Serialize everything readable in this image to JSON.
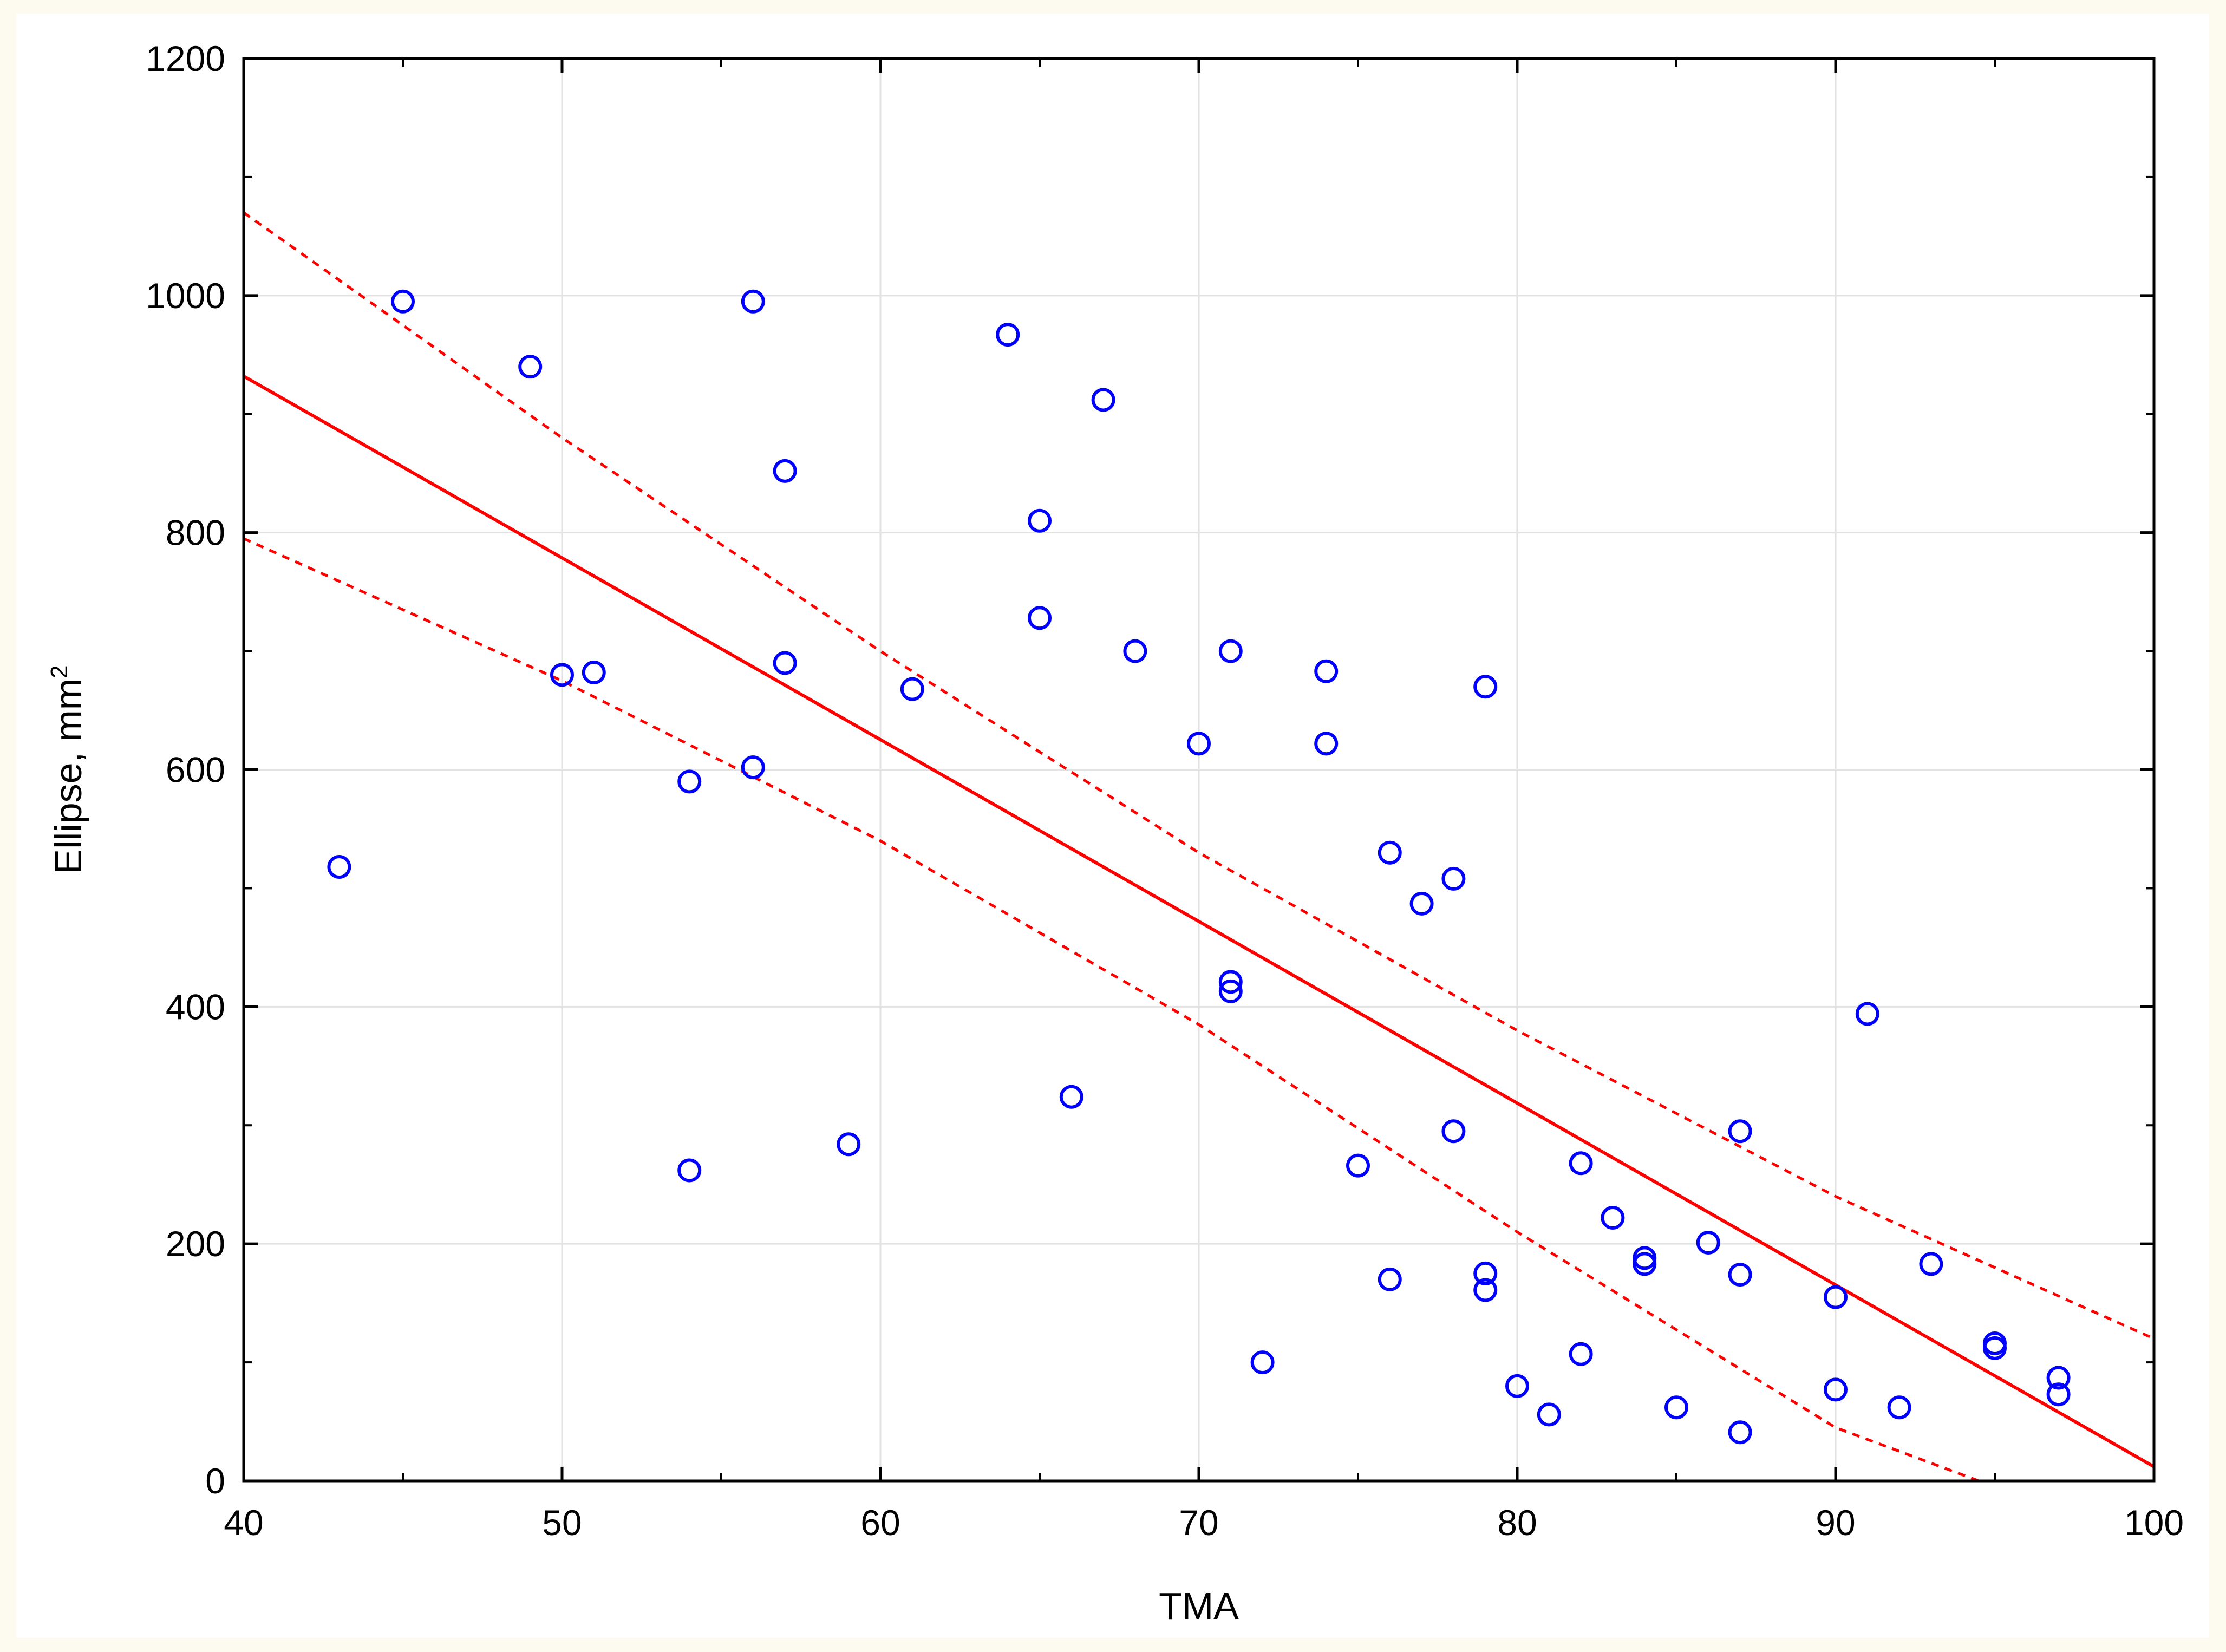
{
  "chart_data": {
    "type": "scatter",
    "title": "",
    "xlabel": "TMA",
    "ylabel": "Ellipse, mm",
    "ylabel_superscript": "2",
    "xlim": [
      40,
      100
    ],
    "ylim": [
      0,
      1200
    ],
    "x_ticks": [
      "40",
      "50",
      "60",
      "70",
      "80",
      "90",
      "100"
    ],
    "y_ticks": [
      "0",
      "200",
      "400",
      "600",
      "800",
      "1000",
      "1200"
    ],
    "grid": true,
    "legend": "none",
    "point_color": "#0000ff",
    "line_color": "#ff0000",
    "regression": {
      "x": [
        40,
        100
      ],
      "y": [
        932,
        12
      ]
    },
    "confidence_upper": {
      "x": [
        40,
        50,
        60,
        70,
        80,
        90,
        100
      ],
      "y": [
        1070,
        880,
        700,
        530,
        380,
        240,
        120
      ]
    },
    "confidence_lower": {
      "x": [
        40,
        50,
        60,
        70,
        80,
        90,
        94.5
      ],
      "y": [
        795,
        675,
        540,
        385,
        210,
        45,
        0
      ]
    },
    "points": [
      {
        "x": 43,
        "y": 518
      },
      {
        "x": 45,
        "y": 995
      },
      {
        "x": 49,
        "y": 940
      },
      {
        "x": 50,
        "y": 680
      },
      {
        "x": 51,
        "y": 682
      },
      {
        "x": 54,
        "y": 590
      },
      {
        "x": 54,
        "y": 262
      },
      {
        "x": 56,
        "y": 995
      },
      {
        "x": 56,
        "y": 602
      },
      {
        "x": 57,
        "y": 852
      },
      {
        "x": 57,
        "y": 690
      },
      {
        "x": 59,
        "y": 284
      },
      {
        "x": 61,
        "y": 668
      },
      {
        "x": 64,
        "y": 967
      },
      {
        "x": 65,
        "y": 810
      },
      {
        "x": 65,
        "y": 728
      },
      {
        "x": 66,
        "y": 324
      },
      {
        "x": 67,
        "y": 912
      },
      {
        "x": 68,
        "y": 700
      },
      {
        "x": 70,
        "y": 622
      },
      {
        "x": 71,
        "y": 700
      },
      {
        "x": 71,
        "y": 421
      },
      {
        "x": 71,
        "y": 413
      },
      {
        "x": 72,
        "y": 100
      },
      {
        "x": 74,
        "y": 683
      },
      {
        "x": 74,
        "y": 622
      },
      {
        "x": 75,
        "y": 266
      },
      {
        "x": 76,
        "y": 530
      },
      {
        "x": 76,
        "y": 170
      },
      {
        "x": 77,
        "y": 487
      },
      {
        "x": 78,
        "y": 508
      },
      {
        "x": 78,
        "y": 295
      },
      {
        "x": 79,
        "y": 670
      },
      {
        "x": 79,
        "y": 175
      },
      {
        "x": 79,
        "y": 161
      },
      {
        "x": 80,
        "y": 80
      },
      {
        "x": 81,
        "y": 56
      },
      {
        "x": 82,
        "y": 268
      },
      {
        "x": 82,
        "y": 107
      },
      {
        "x": 83,
        "y": 222
      },
      {
        "x": 84,
        "y": 188
      },
      {
        "x": 84,
        "y": 183
      },
      {
        "x": 85,
        "y": 62
      },
      {
        "x": 86,
        "y": 201
      },
      {
        "x": 87,
        "y": 295
      },
      {
        "x": 87,
        "y": 174
      },
      {
        "x": 87,
        "y": 41
      },
      {
        "x": 90,
        "y": 155
      },
      {
        "x": 90,
        "y": 77
      },
      {
        "x": 91,
        "y": 394
      },
      {
        "x": 92,
        "y": 62
      },
      {
        "x": 93,
        "y": 183
      },
      {
        "x": 95,
        "y": 116
      },
      {
        "x": 95,
        "y": 112
      },
      {
        "x": 97,
        "y": 87
      },
      {
        "x": 97,
        "y": 73
      }
    ]
  }
}
